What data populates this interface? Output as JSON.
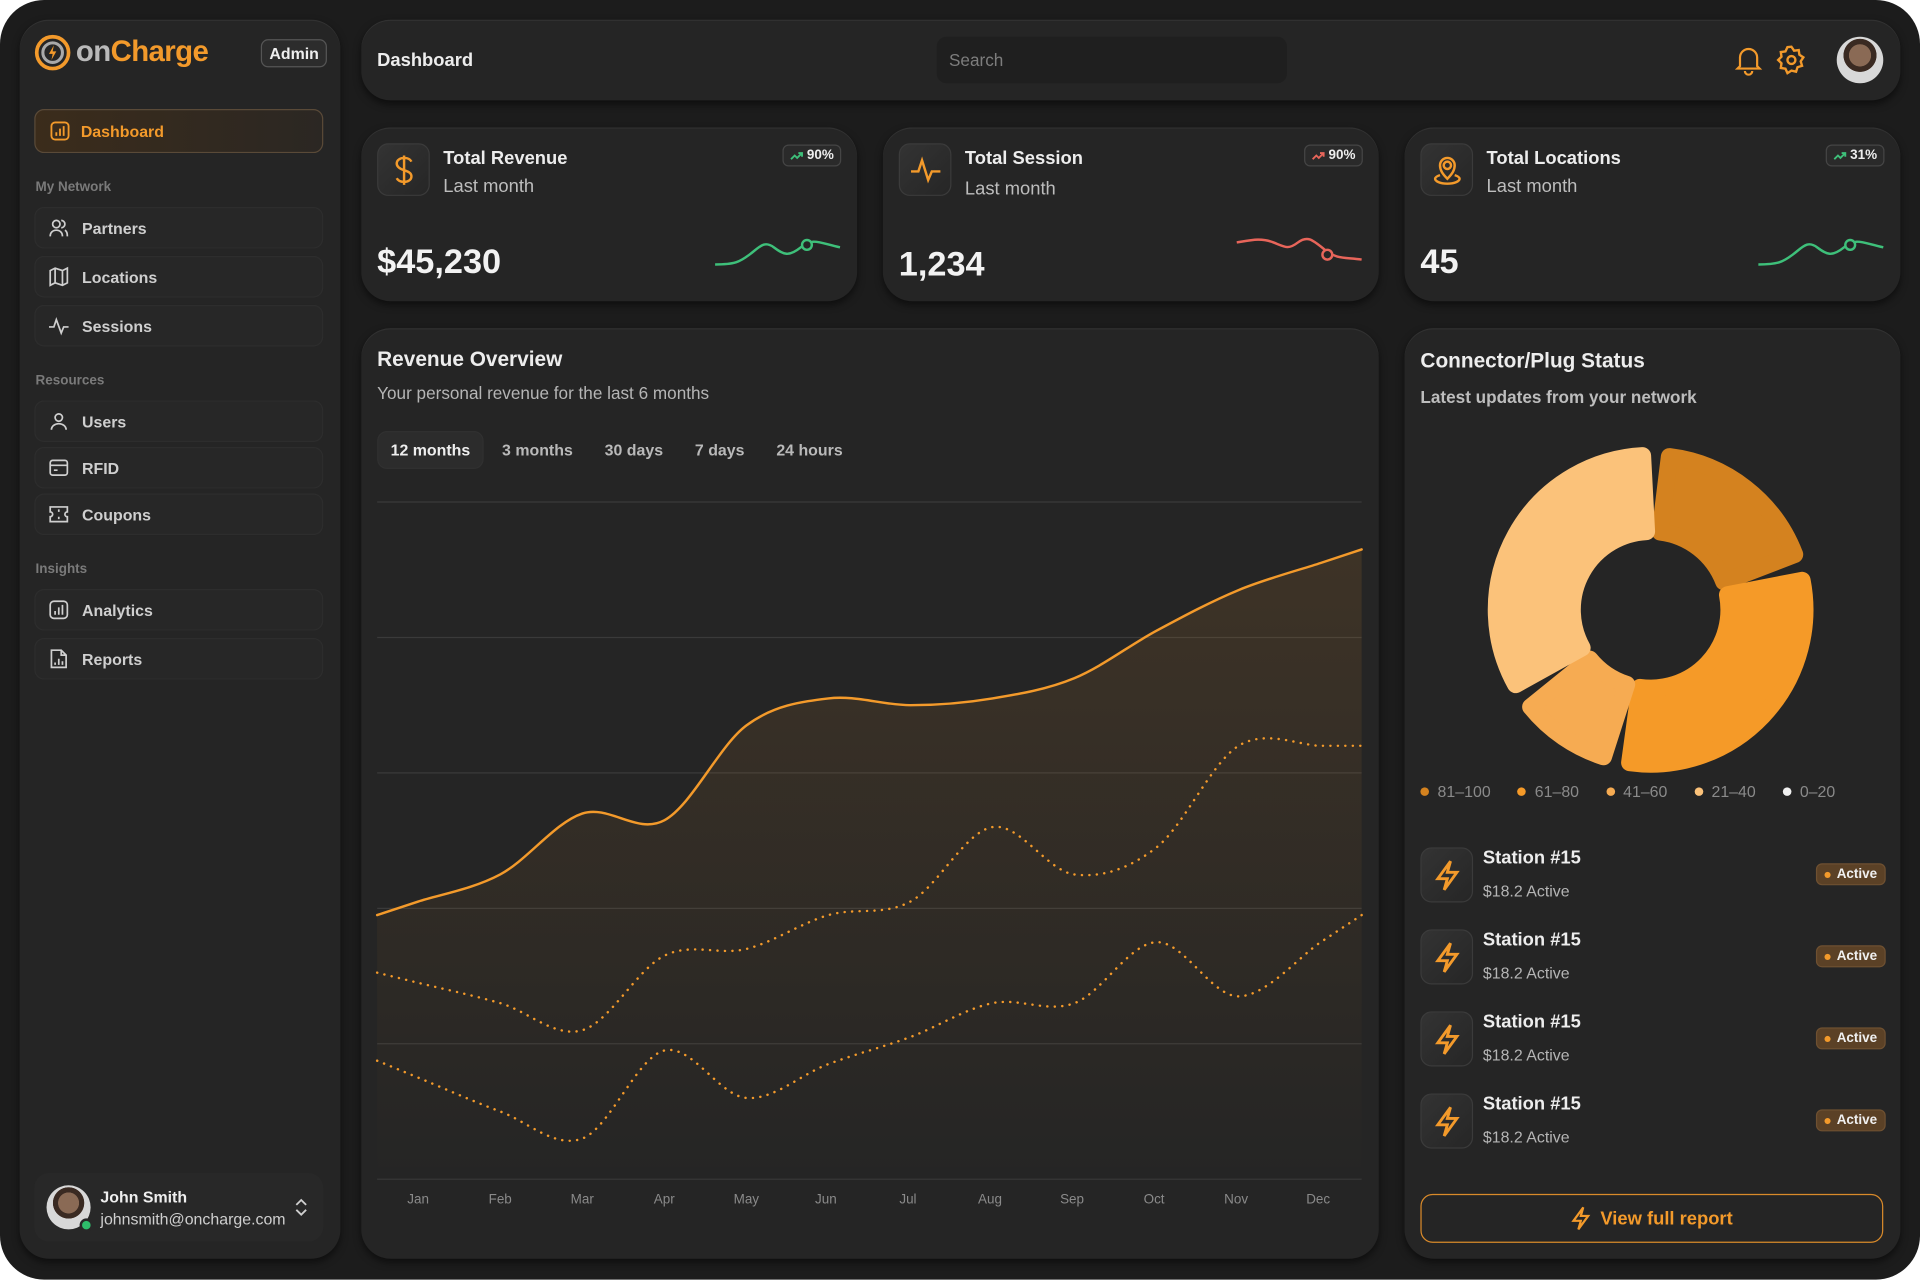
{
  "brand": {
    "name_part1": "on",
    "name_part2": "Charge",
    "role_badge": "Admin"
  },
  "sidebar": {
    "active": {
      "label": "Dashboard",
      "icon": "bar-chart-icon"
    },
    "sections": [
      {
        "title": "My Network",
        "items": [
          {
            "label": "Partners",
            "icon": "users-icon"
          },
          {
            "label": "Locations",
            "icon": "map-icon"
          },
          {
            "label": "Sessions",
            "icon": "activity-icon"
          }
        ]
      },
      {
        "title": "Resources",
        "items": [
          {
            "label": "Users",
            "icon": "user-icon"
          },
          {
            "label": "RFID",
            "icon": "card-icon"
          },
          {
            "label": "Coupons",
            "icon": "ticket-icon"
          }
        ]
      },
      {
        "title": "Insights",
        "items": [
          {
            "label": "Analytics",
            "icon": "bar-chart-icon"
          },
          {
            "label": "Reports",
            "icon": "report-icon"
          }
        ]
      }
    ],
    "user": {
      "name": "John Smith",
      "email": "johnsmith@oncharge.com",
      "status": "online"
    }
  },
  "header": {
    "title": "Dashboard",
    "search_placeholder": "Search"
  },
  "stats": [
    {
      "title": "Total Revenue",
      "subtitle": "Last month",
      "value": "$45,230",
      "change": "90%",
      "trend_color": "#3ec07a",
      "icon": "dollar-icon"
    },
    {
      "title": "Total Session",
      "subtitle": "Last month",
      "value": "1,234",
      "change": "90%",
      "trend_color": "#e8655a",
      "icon": "activity-icon"
    },
    {
      "title": "Total Locations",
      "subtitle": "Last month",
      "value": "45",
      "change": "31%",
      "trend_color": "#3ec07a",
      "icon": "map-pin-icon"
    }
  ],
  "revenue": {
    "title": "Revenue Overview",
    "subtitle": "Your personal revenue for the last 6 months",
    "tabs": [
      "12 months",
      "3 months",
      "30 days",
      "7 days",
      "24 hours"
    ],
    "active_tab": "12 months"
  },
  "chart_data": {
    "type": "line",
    "categories": [
      "Jan",
      "Feb",
      "Mar",
      "Apr",
      "May",
      "Jun",
      "Jul",
      "Aug",
      "Sep",
      "Oct",
      "Nov",
      "Dec"
    ],
    "series": [
      {
        "values": [
          41,
          45,
          54,
          53,
          67,
          71,
          70,
          71,
          74,
          81,
          87,
          91
        ],
        "style": "solid",
        "color": "#f39a2b"
      },
      {
        "values": [
          29,
          26,
          22,
          33,
          34,
          39,
          41,
          52,
          45,
          49,
          64,
          64
        ],
        "style": "dotted",
        "color": "#f39a2b"
      },
      {
        "values": [
          15,
          10,
          6,
          19,
          12,
          17,
          21,
          26,
          26,
          35,
          27,
          35
        ],
        "style": "dotted",
        "color": "#f39a2b"
      }
    ],
    "ylim": [
      0,
      100
    ],
    "grid": true
  },
  "connector": {
    "title": "Connector/Plug Status",
    "subtitle": "Latest updates from your network",
    "donut": [
      {
        "label": "81–100",
        "value": 20,
        "color": "#d4821f"
      },
      {
        "label": "61–80",
        "value": 33,
        "color": "#f59a28"
      },
      {
        "label": "41–60",
        "value": 12,
        "color": "#f6ab52"
      },
      {
        "label": "21–40",
        "value": 35,
        "color": "#fbc27a"
      },
      {
        "label": "0–20",
        "value": 0,
        "color": "#f0f0f0"
      }
    ],
    "stations": [
      {
        "name": "Station #15",
        "detail": "$18.2 Active",
        "status": "Active"
      },
      {
        "name": "Station #15",
        "detail": "$18.2 Active",
        "status": "Active"
      },
      {
        "name": "Station #15",
        "detail": "$18.2 Active",
        "status": "Active"
      },
      {
        "name": "Station #15",
        "detail": "$18.2 Active",
        "status": "Active"
      }
    ],
    "report_label": "View full report"
  },
  "colors": {
    "accent": "#f39a2b",
    "panel": "#252525",
    "background": "#1c1c1c"
  }
}
